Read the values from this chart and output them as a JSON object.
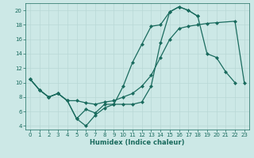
{
  "xlabel": "Humidex (Indice chaleur)",
  "background_color": "#cce8e6",
  "line_color": "#1a6b5e",
  "grid_color_major": "#b8d8d5",
  "grid_color_minor": "#d0e8e5",
  "xlim": [
    -0.5,
    23.5
  ],
  "ylim": [
    3.5,
    21.0
  ],
  "yticks": [
    4,
    6,
    8,
    10,
    12,
    14,
    16,
    18,
    20
  ],
  "xticks": [
    0,
    1,
    2,
    3,
    4,
    5,
    6,
    7,
    8,
    9,
    10,
    11,
    12,
    13,
    14,
    15,
    16,
    17,
    18,
    19,
    20,
    21,
    22,
    23
  ],
  "series1_x": [
    0,
    1,
    2,
    3,
    4,
    5,
    6,
    7,
    8,
    9,
    10,
    11,
    12,
    13,
    14,
    15,
    16,
    17,
    18,
    19,
    20,
    21,
    22
  ],
  "series1_y": [
    10.5,
    9.0,
    8.0,
    8.5,
    7.5,
    5.0,
    4.0,
    5.5,
    6.5,
    7.0,
    7.0,
    7.0,
    7.3,
    9.5,
    15.5,
    19.8,
    20.5,
    20.0,
    19.2,
    14.0,
    13.5,
    11.5,
    10.0
  ],
  "series2_x": [
    0,
    1,
    2,
    3,
    4,
    5,
    6,
    7,
    8,
    9,
    10,
    11,
    12,
    13,
    14,
    15,
    16,
    17,
    18,
    19,
    20,
    22,
    23
  ],
  "series2_y": [
    10.5,
    9.0,
    8.0,
    8.5,
    7.5,
    7.5,
    7.2,
    7.0,
    7.3,
    7.5,
    8.0,
    8.5,
    9.5,
    11.0,
    13.5,
    16.0,
    17.5,
    17.8,
    18.0,
    18.2,
    18.3,
    18.5,
    10.0
  ],
  "series3_x": [
    0,
    1,
    2,
    3,
    4,
    5,
    6,
    7,
    8,
    9,
    10,
    11,
    12,
    13,
    14,
    15,
    16,
    17,
    18
  ],
  "series3_y": [
    10.5,
    9.0,
    8.0,
    8.5,
    7.5,
    5.0,
    6.3,
    5.8,
    7.0,
    7.0,
    9.5,
    12.8,
    15.3,
    17.8,
    18.0,
    19.8,
    20.5,
    20.0,
    19.2
  ]
}
